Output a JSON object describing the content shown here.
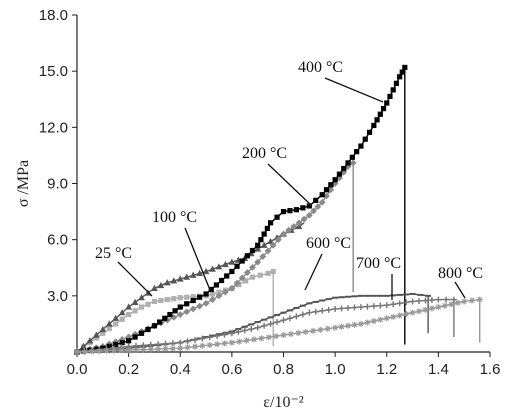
{
  "chart_data": {
    "type": "line",
    "title": "",
    "xlabel": "ε/10⁻²",
    "ylabel": "σ /MPa",
    "xlim": [
      0.0,
      1.6
    ],
    "ylim": [
      0.0,
      18.0
    ],
    "x_ticks": [
      "0.0",
      "0.2",
      "0.4",
      "0.6",
      "0.8",
      "1.0",
      "1.2",
      "1.4",
      "1.6"
    ],
    "y_ticks": [
      "3.0",
      "6.0",
      "9.0",
      "12.0",
      "15.0",
      "18.0"
    ],
    "grid": false,
    "series": [
      {
        "name": "25 °C",
        "color": "#b0b0b0",
        "marker": "square",
        "points": [
          [
            0,
            0
          ],
          [
            0.05,
            0.5
          ],
          [
            0.1,
            1.0
          ],
          [
            0.15,
            1.5
          ],
          [
            0.2,
            2.0
          ],
          [
            0.25,
            2.4
          ],
          [
            0.3,
            2.7
          ],
          [
            0.4,
            2.9
          ],
          [
            0.5,
            3.0
          ],
          [
            0.6,
            3.4
          ],
          [
            0.68,
            4.0
          ],
          [
            0.74,
            4.2
          ],
          [
            0.76,
            4.3
          ],
          [
            0.76,
            0.3
          ]
        ]
      },
      {
        "name": "100 °C",
        "color": "#555555",
        "marker": "triangle",
        "points": [
          [
            0,
            0
          ],
          [
            0.05,
            0.6
          ],
          [
            0.1,
            1.2
          ],
          [
            0.15,
            1.8
          ],
          [
            0.2,
            2.4
          ],
          [
            0.25,
            2.9
          ],
          [
            0.3,
            3.4
          ],
          [
            0.35,
            3.7
          ],
          [
            0.4,
            3.9
          ],
          [
            0.5,
            4.3
          ],
          [
            0.6,
            4.8
          ],
          [
            0.65,
            5.0
          ],
          [
            0.7,
            5.5
          ],
          [
            0.75,
            5.9
          ],
          [
            0.8,
            6.3
          ],
          [
            0.86,
            6.7
          ],
          [
            0.88,
            6.9
          ]
        ]
      },
      {
        "name": "200 °C",
        "color": "#8a8a8a",
        "marker": "diamond",
        "points": [
          [
            0,
            0
          ],
          [
            0.1,
            0.3
          ],
          [
            0.2,
            0.8
          ],
          [
            0.3,
            1.4
          ],
          [
            0.4,
            2.0
          ],
          [
            0.5,
            2.6
          ],
          [
            0.6,
            3.4
          ],
          [
            0.7,
            4.8
          ],
          [
            0.8,
            6.3
          ],
          [
            0.9,
            7.3
          ],
          [
            0.95,
            8.0
          ],
          [
            1.0,
            9.0
          ],
          [
            1.05,
            9.9
          ],
          [
            1.07,
            10.1
          ],
          [
            1.07,
            3.2
          ]
        ]
      },
      {
        "name": "400 °C",
        "color": "#000000",
        "marker": "square",
        "points": [
          [
            0,
            0
          ],
          [
            0.1,
            0.2
          ],
          [
            0.2,
            0.6
          ],
          [
            0.3,
            1.4
          ],
          [
            0.4,
            2.4
          ],
          [
            0.5,
            3.1
          ],
          [
            0.6,
            4.3
          ],
          [
            0.7,
            5.7
          ],
          [
            0.75,
            6.9
          ],
          [
            0.8,
            7.5
          ],
          [
            0.85,
            7.6
          ],
          [
            0.9,
            7.8
          ],
          [
            0.95,
            8.4
          ],
          [
            1.0,
            9.2
          ],
          [
            1.05,
            10.1
          ],
          [
            1.1,
            11.0
          ],
          [
            1.15,
            12.1
          ],
          [
            1.2,
            13.3
          ],
          [
            1.25,
            14.7
          ],
          [
            1.27,
            15.2
          ],
          [
            1.27,
            0.4
          ]
        ]
      },
      {
        "name": "600 °C",
        "color": "#555555",
        "marker": "dash",
        "points": [
          [
            0,
            0
          ],
          [
            0.2,
            0.2
          ],
          [
            0.4,
            0.5
          ],
          [
            0.5,
            0.8
          ],
          [
            0.6,
            1.1
          ],
          [
            0.7,
            1.6
          ],
          [
            0.8,
            2.1
          ],
          [
            0.9,
            2.6
          ],
          [
            1.0,
            2.9
          ],
          [
            1.1,
            3.0
          ],
          [
            1.2,
            3.0
          ],
          [
            1.3,
            3.1
          ],
          [
            1.36,
            3.0
          ],
          [
            1.36,
            1.0
          ]
        ]
      },
      {
        "name": "700 °C",
        "color": "#777777",
        "marker": "plus",
        "points": [
          [
            0,
            0
          ],
          [
            0.2,
            0.3
          ],
          [
            0.4,
            0.5
          ],
          [
            0.6,
            1.0
          ],
          [
            0.7,
            1.3
          ],
          [
            0.8,
            1.7
          ],
          [
            0.9,
            2.1
          ],
          [
            1.0,
            2.3
          ],
          [
            1.1,
            2.4
          ],
          [
            1.2,
            2.5
          ],
          [
            1.3,
            2.7
          ],
          [
            1.4,
            2.8
          ],
          [
            1.46,
            2.8
          ],
          [
            1.46,
            0.8
          ]
        ]
      },
      {
        "name": "800 °C",
        "color": "#999999",
        "marker": "star",
        "points": [
          [
            0,
            0
          ],
          [
            0.2,
            0.1
          ],
          [
            0.4,
            0.2
          ],
          [
            0.6,
            0.5
          ],
          [
            0.8,
            0.9
          ],
          [
            1.0,
            1.3
          ],
          [
            1.1,
            1.5
          ],
          [
            1.2,
            1.8
          ],
          [
            1.3,
            2.1
          ],
          [
            1.4,
            2.4
          ],
          [
            1.5,
            2.7
          ],
          [
            1.56,
            2.8
          ],
          [
            1.56,
            0.5
          ]
        ]
      }
    ]
  }
}
